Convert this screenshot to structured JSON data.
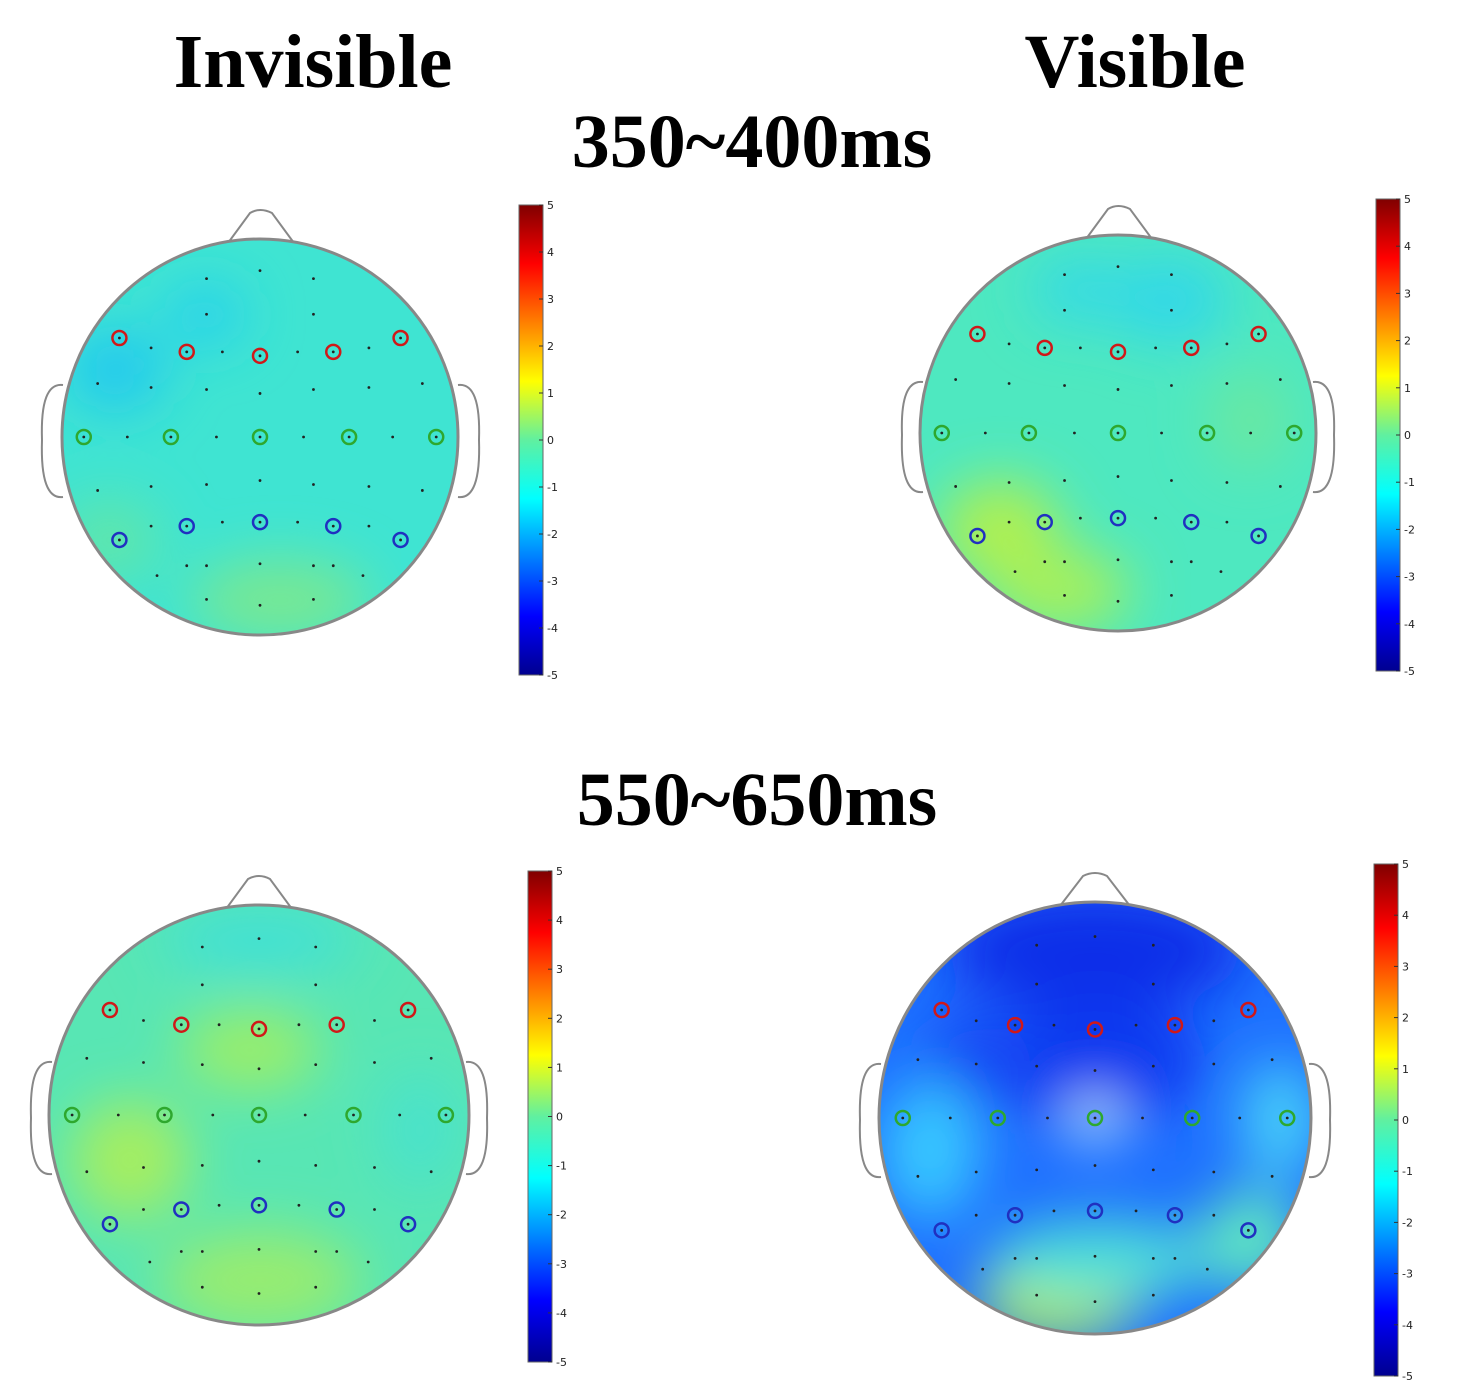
{
  "columns": {
    "left": "Invisible",
    "right": "Visible"
  },
  "windows": [
    "350~400ms",
    "550~650ms"
  ],
  "colorbar": {
    "ticks": [
      "5",
      "4",
      "3",
      "2",
      "1",
      "0",
      "-1",
      "-2",
      "-3",
      "-4",
      "-5"
    ],
    "range": [
      -5,
      5
    ],
    "colors": [
      "#00008f",
      "#0000ff",
      "#0080ff",
      "#00ffff",
      "#80ff80",
      "#ffff00",
      "#ff8000",
      "#ff0000",
      "#800000"
    ]
  },
  "maps": [
    {
      "id": "invisible-350-400",
      "base": "#3de6c8"
    },
    {
      "id": "visible-350-400",
      "base": "#52e8b8"
    },
    {
      "id": "invisible-550-650",
      "base": "#5ee6a8"
    },
    {
      "id": "visible-550-650",
      "base": "#1f6cff"
    }
  ],
  "marker_colors": {
    "frontal": "#d01818",
    "central": "#2ea82e",
    "parietal": "#2030c0"
  }
}
